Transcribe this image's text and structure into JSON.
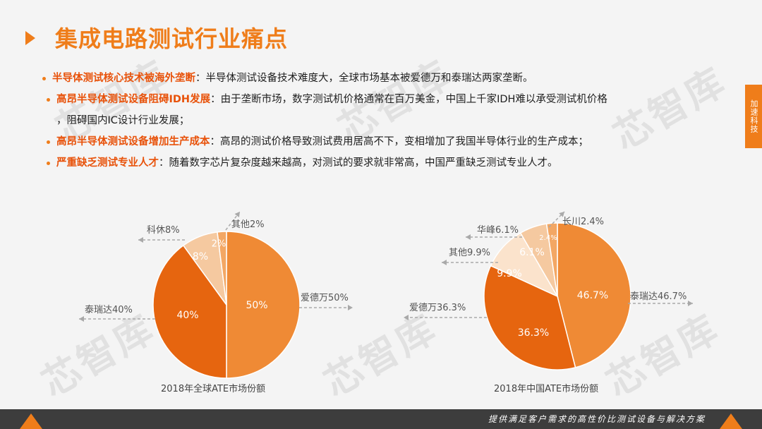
{
  "header": {
    "title": "集成电路测试行业痛点"
  },
  "side_tag": "加速科技",
  "watermark": "芯智库",
  "bullets": [
    {
      "highlight": "半导体测试核心技术被海外垄断",
      "text": "：半导体测试设备技术难度大，全球市场基本被爱德万和泰瑞达两家垄断。"
    },
    {
      "highlight": "高昂半导体测试设备阻碍IDH发展",
      "text": "：由于垄断市场，数字测试机价格通常在百万美金，中国上千家IDH难以承受测试机价格",
      "continuation": "，阻碍国内IC设计行业发展；"
    },
    {
      "highlight": "高昂半导体测试设备增加生产成本",
      "text": "：高昂的测试价格导致测试费用居高不下，变相增加了我国半导体行业的生产成本；"
    },
    {
      "highlight": "严重缺乏测试专业人才",
      "text": "：随着数字芯片复杂度越来越高，对测试的要求就非常高，中国严重缺乏测试专业人才。"
    }
  ],
  "footer": {
    "text": "提供满足客户需求的高性价比测试设备与解决方案"
  },
  "chart_data": [
    {
      "type": "pie",
      "title": "2018年全球ATE市场份额",
      "slices": [
        {
          "name": "爱德万",
          "value": 50,
          "label": "50%",
          "callout": "爱德万50%",
          "color": "#ef8a35"
        },
        {
          "name": "泰瑞达",
          "value": 40,
          "label": "40%",
          "callout": "泰瑞达40%",
          "color": "#e6650f"
        },
        {
          "name": "科休",
          "value": 8,
          "label": "8%",
          "callout": "科休8%",
          "color": "#f5c9a0"
        },
        {
          "name": "其他",
          "value": 2,
          "label": "2%",
          "callout": "其他2%",
          "color": "#f3a764"
        }
      ]
    },
    {
      "type": "pie",
      "title": "2018年中国ATE市场份额",
      "slices": [
        {
          "name": "泰瑞达",
          "value": 46.7,
          "label": "46.7%",
          "callout": "泰瑞达46.7%",
          "color": "#ef8a35"
        },
        {
          "name": "爱德万",
          "value": 36.3,
          "label": "36.3%",
          "callout": "爱德万36.3%",
          "color": "#e6650f"
        },
        {
          "name": "其他",
          "value": 9.9,
          "label": "9.9%",
          "callout": "其他9.9%",
          "color": "#fbe3cc"
        },
        {
          "name": "华峰",
          "value": 6.1,
          "label": "6.1%",
          "callout": "华峰6.1%",
          "color": "#f5c9a0"
        },
        {
          "name": "长川",
          "value": 2.4,
          "label": "2.4%",
          "callout": "长川2.4%",
          "color": "#f3a764"
        }
      ]
    }
  ]
}
